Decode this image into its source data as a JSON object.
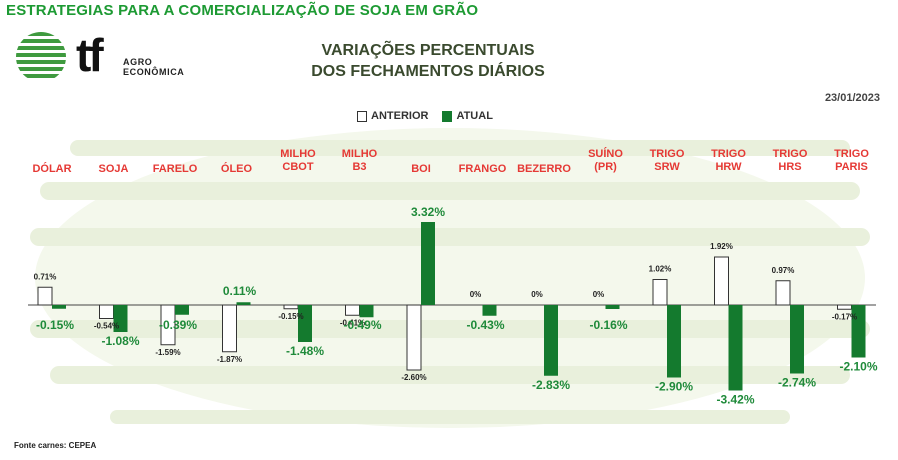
{
  "header": {
    "top_title": "ESTRATEGIAS PARA A COMERCIALIZAÇÃO DE SOJA EM GRÃO",
    "logo_mark": "tf",
    "logo_sub_1": "AGRO",
    "logo_sub_2": "ECONÔMICA",
    "logo_icon": "striped-globe-icon",
    "chart_title_1": "VARIAÇÕES PERCENTUAIS",
    "chart_title_2": "DOS FECHAMENTOS DIÁRIOS",
    "date": "23/01/2023"
  },
  "footer": {
    "source": "Fonte carnes: CEPEA"
  },
  "colors": {
    "title_green": "#1d9a33",
    "bar_current": "#147a2e",
    "label_current": "#1f8a3a",
    "category_red": "#e53935",
    "watermark": "#eef3e3"
  },
  "chart_data": {
    "type": "bar",
    "categories": [
      [
        "DÓLAR"
      ],
      [
        "SOJA"
      ],
      [
        "FARELO"
      ],
      [
        "ÓLEO"
      ],
      [
        "MILHO",
        "CBOT"
      ],
      [
        "MILHO",
        "B3"
      ],
      [
        "BOI"
      ],
      [
        "FRANGO"
      ],
      [
        "BEZERRO"
      ],
      [
        "SUÍNO",
        "(PR)"
      ],
      [
        "TRIGO",
        "SRW"
      ],
      [
        "TRIGO",
        "HRW"
      ],
      [
        "TRIGO",
        "HRS"
      ],
      [
        "TRIGO",
        "PARIS"
      ]
    ],
    "legend": [
      "ANTERIOR",
      "ATUAL"
    ],
    "legend_position": "top-center",
    "grid": false,
    "ylim": [
      -3.5,
      3.5
    ],
    "series": [
      {
        "name": "ANTERIOR",
        "values": [
          0.71,
          -0.54,
          -1.59,
          -1.87,
          -0.15,
          -0.41,
          -2.6,
          0,
          0,
          0,
          1.02,
          1.92,
          0.97,
          -0.17
        ],
        "labels": [
          "0.71%",
          "-0.54%",
          "-1.59%",
          "-1.87%",
          "-0.15%",
          "-0.41%",
          "-2.60%",
          "0%",
          "0%",
          "0%",
          "1.02%",
          "1.92%",
          "0.97%",
          "-0.17%"
        ]
      },
      {
        "name": "ATUAL",
        "values": [
          -0.15,
          -1.08,
          -0.39,
          0.11,
          -1.48,
          -0.49,
          3.32,
          -0.43,
          -2.83,
          -0.16,
          -2.9,
          -3.42,
          -2.74,
          -2.1
        ],
        "labels": [
          "-0.15%",
          "-1.08%",
          "-0.39%",
          "0.11%",
          "-1.48%",
          "-0.49%",
          "3.32%",
          "-0.43%",
          "-2.83%",
          "-0.16%",
          "-2.90%",
          "-3.42%",
          "-2.74%",
          "-2.10%"
        ]
      }
    ]
  }
}
